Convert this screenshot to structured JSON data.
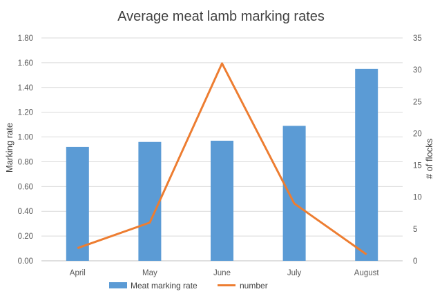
{
  "chart_data": {
    "type": "bar",
    "title": "Average meat lamb marking rates",
    "categories": [
      "April",
      "May",
      "June",
      "July",
      "August"
    ],
    "series": [
      {
        "name": "Meat marking rate",
        "type": "bar",
        "axis": "left",
        "color": "#5b9bd5",
        "values": [
          0.92,
          0.96,
          0.97,
          1.09,
          1.55
        ]
      },
      {
        "name": "number",
        "type": "line",
        "axis": "right",
        "color": "#ed7d31",
        "values": [
          2,
          6,
          31,
          9,
          1
        ]
      }
    ],
    "ylabel": "Marking rate",
    "y2label": "# of flocks",
    "ylim": [
      0,
      1.8
    ],
    "y2lim": [
      0,
      35
    ],
    "yticks": [
      "0.00",
      "0.20",
      "0.40",
      "0.60",
      "0.80",
      "1.00",
      "1.20",
      "1.40",
      "1.60",
      "1.80"
    ],
    "y2ticks": [
      "0",
      "5",
      "10",
      "15",
      "20",
      "25",
      "30",
      "35"
    ],
    "grid": true,
    "legend_position": "bottom"
  }
}
